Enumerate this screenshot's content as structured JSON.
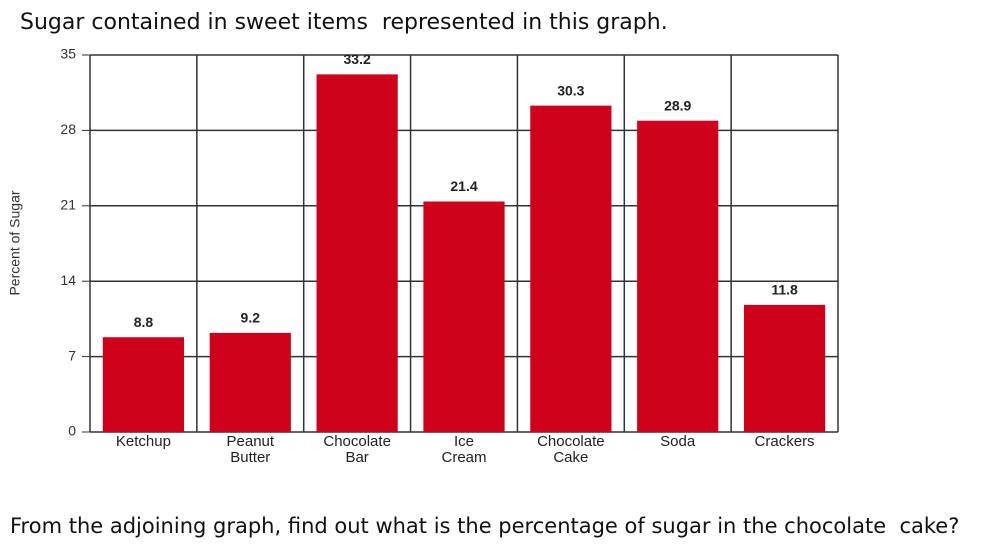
{
  "chart_data": {
    "type": "bar",
    "title": "Sugar contained in sweet items  represented in this graph.",
    "y_label": "Percent of Sugar",
    "categories": [
      "Ketchup",
      "Peanut Butter",
      "Chocolate Bar",
      "Ice Cream",
      "Chocolate Cake",
      "Soda",
      "Crackers"
    ],
    "values": [
      8.8,
      9.2,
      33.2,
      21.4,
      30.3,
      28.9,
      11.8
    ],
    "color": "#d0021b",
    "ylim": [
      0,
      35
    ],
    "yticks": [
      0,
      7,
      14,
      21,
      28,
      35
    ],
    "grid": true
  },
  "question": "From the adjoining graph, find out what is the percentage of sugar in the chocolate  cake?"
}
